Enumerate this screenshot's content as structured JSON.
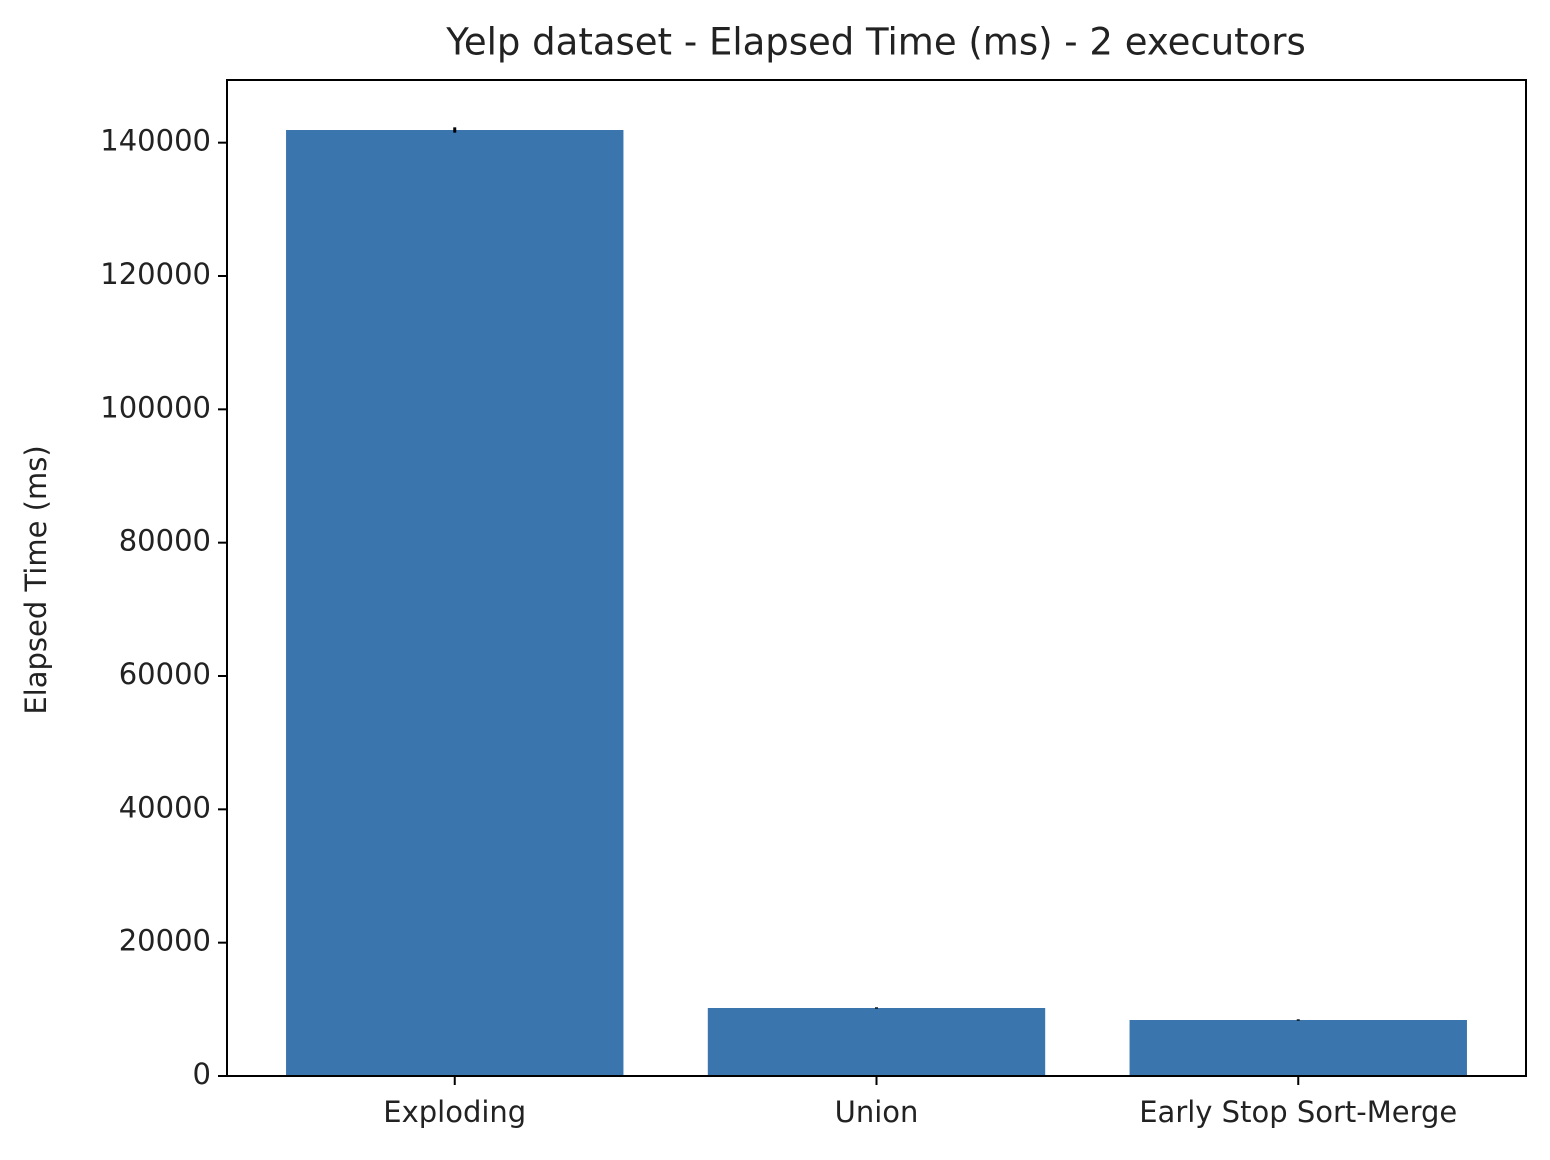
{
  "chart_data": {
    "type": "bar",
    "title": "Yelp dataset - Elapsed Time (ms) - 2 executors",
    "y_label": "Elapsed Time (ms)",
    "categories": [
      "Exploding",
      "Union",
      "Early Stop Sort-Merge"
    ],
    "values": [
      141900,
      10200,
      8400
    ],
    "errors": [
      400,
      100,
      100
    ],
    "color": "#3a75ae",
    "ylim": [
      0,
      149400
    ],
    "yticks": [
      0,
      20000,
      40000,
      60000,
      80000,
      100000,
      120000,
      140000
    ],
    "grid": false
  }
}
